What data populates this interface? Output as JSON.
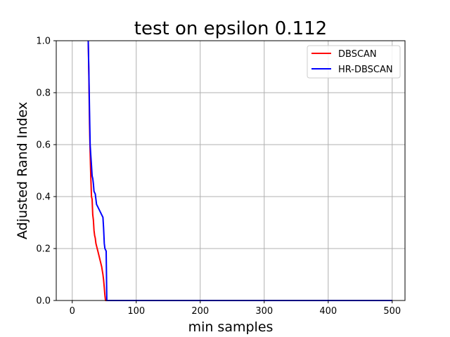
{
  "chart_data": {
    "type": "line",
    "title": "test on epsilon 0.112",
    "xlabel": "min samples",
    "ylabel": "Adjusted Rand Index",
    "xlim": [
      -25,
      520
    ],
    "ylim": [
      0,
      1.0
    ],
    "xticks": [
      0,
      100,
      200,
      300,
      400,
      500
    ],
    "yticks": [
      0.0,
      0.2,
      0.4,
      0.6,
      0.8,
      1.0
    ],
    "xtick_labels": [
      "0",
      "100",
      "200",
      "300",
      "400",
      "500"
    ],
    "ytick_labels": [
      "0.0",
      "0.2",
      "0.4",
      "0.6",
      "0.8",
      "1.0"
    ],
    "grid": true,
    "legend_position": "top-right",
    "series": [
      {
        "name": "DBSCAN",
        "color": "#ff0000",
        "points": [
          [
            25,
            1.0
          ],
          [
            26,
            0.86
          ],
          [
            27,
            0.68
          ],
          [
            28,
            0.57
          ],
          [
            29,
            0.48
          ],
          [
            30,
            0.4
          ],
          [
            31,
            0.39
          ],
          [
            32,
            0.33
          ],
          [
            33,
            0.31
          ],
          [
            34,
            0.27
          ],
          [
            35,
            0.25
          ],
          [
            36,
            0.24
          ],
          [
            37,
            0.22
          ],
          [
            38,
            0.21
          ],
          [
            40,
            0.19
          ],
          [
            42,
            0.17
          ],
          [
            44,
            0.15
          ],
          [
            46,
            0.13
          ],
          [
            48,
            0.1
          ],
          [
            49,
            0.08
          ],
          [
            50,
            0.05
          ],
          [
            51,
            0.02
          ],
          [
            52,
            0.0
          ],
          [
            500,
            0.0
          ]
        ]
      },
      {
        "name": "HR-DBSCAN",
        "color": "#0000ff",
        "points": [
          [
            25,
            1.0
          ],
          [
            26,
            0.88
          ],
          [
            27,
            0.73
          ],
          [
            28,
            0.6
          ],
          [
            29,
            0.56
          ],
          [
            30,
            0.52
          ],
          [
            31,
            0.48
          ],
          [
            32,
            0.47
          ],
          [
            33,
            0.45
          ],
          [
            34,
            0.42
          ],
          [
            36,
            0.41
          ],
          [
            37,
            0.39
          ],
          [
            38,
            0.37
          ],
          [
            40,
            0.36
          ],
          [
            42,
            0.35
          ],
          [
            44,
            0.34
          ],
          [
            46,
            0.33
          ],
          [
            48,
            0.32
          ],
          [
            49,
            0.28
          ],
          [
            50,
            0.22
          ],
          [
            51,
            0.2
          ],
          [
            53,
            0.19
          ],
          [
            54,
            0.0
          ],
          [
            500,
            0.0
          ]
        ]
      }
    ]
  }
}
